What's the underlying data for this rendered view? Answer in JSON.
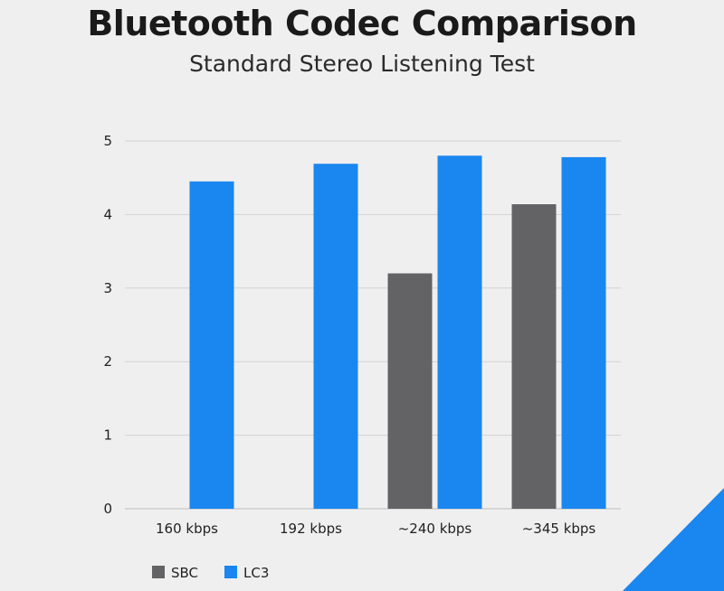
{
  "chart_data": {
    "type": "bar",
    "title": "Bluetooth Codec Comparison",
    "subtitle": "Standard Stereo Listening Test",
    "xlabel": "",
    "ylabel": "",
    "categories": [
      "160 kbps",
      "192 kbps",
      "~240 kbps",
      "~345 kbps"
    ],
    "series": [
      {
        "name": "SBC",
        "values": [
          null,
          null,
          3.2,
          4.14
        ],
        "color": "#636366"
      },
      {
        "name": "LC3",
        "values": [
          4.45,
          4.69,
          4.8,
          4.78
        ],
        "color": "#1a86f0"
      }
    ],
    "ylim": [
      0,
      5
    ],
    "yticks": [
      0,
      1,
      2,
      3,
      4,
      5
    ],
    "grid": true,
    "legend_position": "bottom-left"
  },
  "decoration": {
    "corner_color": "#1a86f0"
  }
}
